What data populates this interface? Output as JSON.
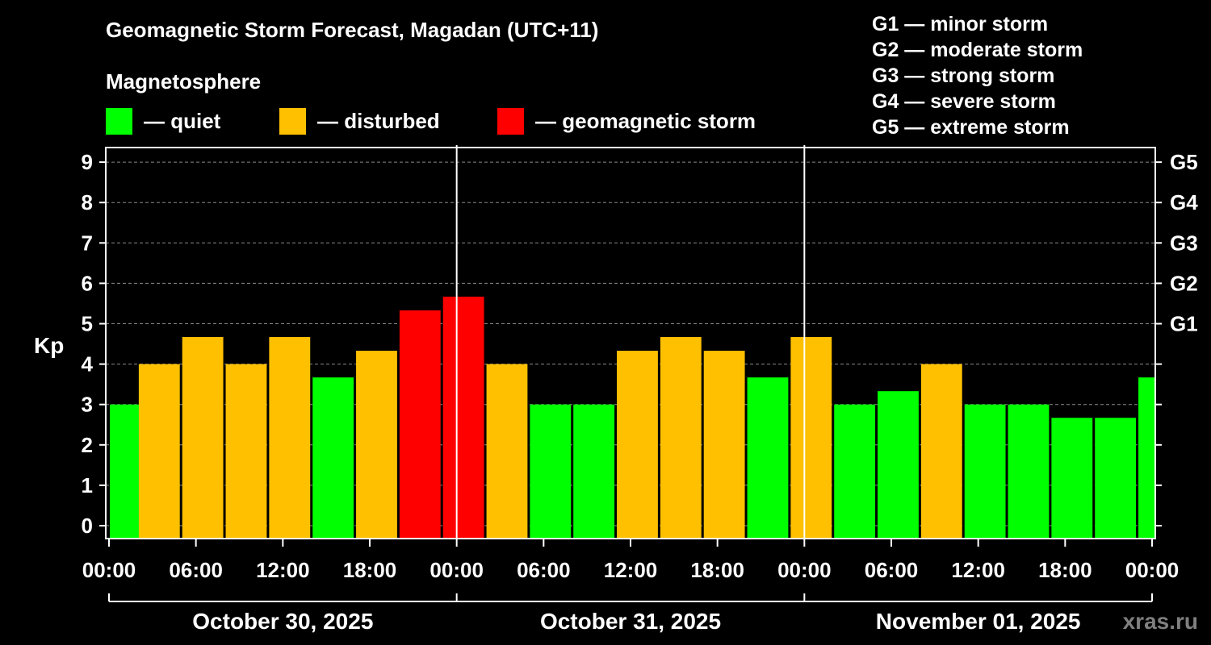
{
  "header": {
    "title": "Geomagnetic Storm Forecast, Magadan (UTC+11)",
    "subtitle": "Magnetosphere"
  },
  "legend": [
    {
      "label": "— quiet",
      "color": "#00ff00"
    },
    {
      "label": "— disturbed",
      "color": "#ffc000"
    },
    {
      "label": "— geomagnetic storm",
      "color": "#ff0000"
    }
  ],
  "g_scale": [
    "G1 — minor storm",
    "G2 — moderate storm",
    "G3 — strong storm",
    "G4 — severe storm",
    "G5 — extreme storm"
  ],
  "watermark": "xras.ru",
  "chart_data": {
    "type": "bar",
    "ylabel": "Kp",
    "ylim": [
      0,
      9
    ],
    "y_ticks": [
      0,
      1,
      2,
      3,
      4,
      5,
      6,
      7,
      8,
      9
    ],
    "right_ticks": [
      {
        "kp": 5,
        "label": "G1"
      },
      {
        "kp": 6,
        "label": "G2"
      },
      {
        "kp": 7,
        "label": "G3"
      },
      {
        "kp": 8,
        "label": "G4"
      },
      {
        "kp": 9,
        "label": "G5"
      }
    ],
    "x_range_hours": [
      0,
      72
    ],
    "x_ticks": [
      {
        "hour": 0,
        "label": "00:00"
      },
      {
        "hour": 6,
        "label": "06:00"
      },
      {
        "hour": 12,
        "label": "12:00"
      },
      {
        "hour": 18,
        "label": "18:00"
      },
      {
        "hour": 24,
        "label": "00:00"
      },
      {
        "hour": 30,
        "label": "06:00"
      },
      {
        "hour": 36,
        "label": "12:00"
      },
      {
        "hour": 42,
        "label": "18:00"
      },
      {
        "hour": 48,
        "label": "00:00"
      },
      {
        "hour": 54,
        "label": "06:00"
      },
      {
        "hour": 60,
        "label": "12:00"
      },
      {
        "hour": 66,
        "label": "18:00"
      },
      {
        "hour": 72,
        "label": "00:00"
      }
    ],
    "day_boundaries_hours": [
      24,
      48
    ],
    "dates": [
      {
        "label": "October 30, 2025",
        "start": 0,
        "end": 24
      },
      {
        "label": "October 31, 2025",
        "start": 24,
        "end": 48
      },
      {
        "label": "November 01, 2025",
        "start": 48,
        "end": 72
      }
    ],
    "grid": true,
    "bars": [
      {
        "start": 0,
        "kp": 3.0,
        "status": "quiet"
      },
      {
        "start": 2,
        "kp": 4.0,
        "status": "disturbed"
      },
      {
        "start": 5,
        "kp": 4.67,
        "status": "disturbed"
      },
      {
        "start": 8,
        "kp": 4.0,
        "status": "disturbed"
      },
      {
        "start": 11,
        "kp": 4.67,
        "status": "disturbed"
      },
      {
        "start": 14,
        "kp": 3.67,
        "status": "quiet"
      },
      {
        "start": 17,
        "kp": 4.33,
        "status": "disturbed"
      },
      {
        "start": 20,
        "kp": 5.33,
        "status": "storm"
      },
      {
        "start": 23,
        "kp": 5.67,
        "status": "storm"
      },
      {
        "start": 26,
        "kp": 4.0,
        "status": "disturbed"
      },
      {
        "start": 29,
        "kp": 3.0,
        "status": "quiet"
      },
      {
        "start": 32,
        "kp": 3.0,
        "status": "quiet"
      },
      {
        "start": 35,
        "kp": 4.33,
        "status": "disturbed"
      },
      {
        "start": 38,
        "kp": 4.67,
        "status": "disturbed"
      },
      {
        "start": 41,
        "kp": 4.33,
        "status": "disturbed"
      },
      {
        "start": 44,
        "kp": 3.67,
        "status": "quiet"
      },
      {
        "start": 47,
        "kp": 4.67,
        "status": "disturbed"
      },
      {
        "start": 50,
        "kp": 3.0,
        "status": "quiet"
      },
      {
        "start": 53,
        "kp": 3.33,
        "status": "quiet"
      },
      {
        "start": 56,
        "kp": 4.0,
        "status": "disturbed"
      },
      {
        "start": 59,
        "kp": 3.0,
        "status": "quiet"
      },
      {
        "start": 62,
        "kp": 3.0,
        "status": "quiet"
      },
      {
        "start": 65,
        "kp": 2.67,
        "status": "quiet"
      },
      {
        "start": 68,
        "kp": 2.67,
        "status": "quiet"
      },
      {
        "start": 71,
        "kp": 3.67,
        "status": "quiet"
      }
    ],
    "status_colors": {
      "quiet": "#00ff00",
      "disturbed": "#ffc000",
      "storm": "#ff0000"
    }
  }
}
